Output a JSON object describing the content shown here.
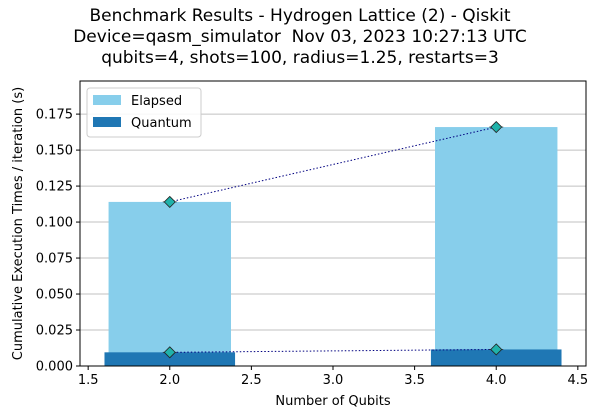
{
  "title_lines": [
    "Benchmark Results - Hydrogen Lattice (2) - Qiskit",
    "Device=qasm_simulator  Nov 03, 2023 10:27:13 UTC",
    "qubits=4, shots=100, radius=1.25, restarts=3"
  ],
  "colors": {
    "elapsed": "#87CEEB",
    "quantum": "#1F77B4",
    "marker_fill": "#20B2AA",
    "trend_line": "#000080",
    "grid": "#c0c0c0"
  },
  "chart_data": {
    "type": "bar",
    "xlabel": "Number of Qubits",
    "ylabel": "Cumulative Execution Times / iteration (s)",
    "xlim": [
      1.45,
      4.55
    ],
    "ylim": [
      0,
      0.198
    ],
    "x_ticks": [
      "1.5",
      "2.0",
      "2.5",
      "3.0",
      "3.5",
      "4.0",
      "4.5"
    ],
    "y_ticks": [
      "0.000",
      "0.025",
      "0.050",
      "0.075",
      "0.100",
      "0.125",
      "0.150",
      "0.175"
    ],
    "grid": "horizontal",
    "legend_position": "upper left",
    "categories": [
      2,
      4
    ],
    "series": [
      {
        "name": "Elapsed",
        "values": [
          0.114,
          0.166
        ]
      },
      {
        "name": "Quantum",
        "values": [
          0.0095,
          0.0115
        ]
      }
    ]
  }
}
